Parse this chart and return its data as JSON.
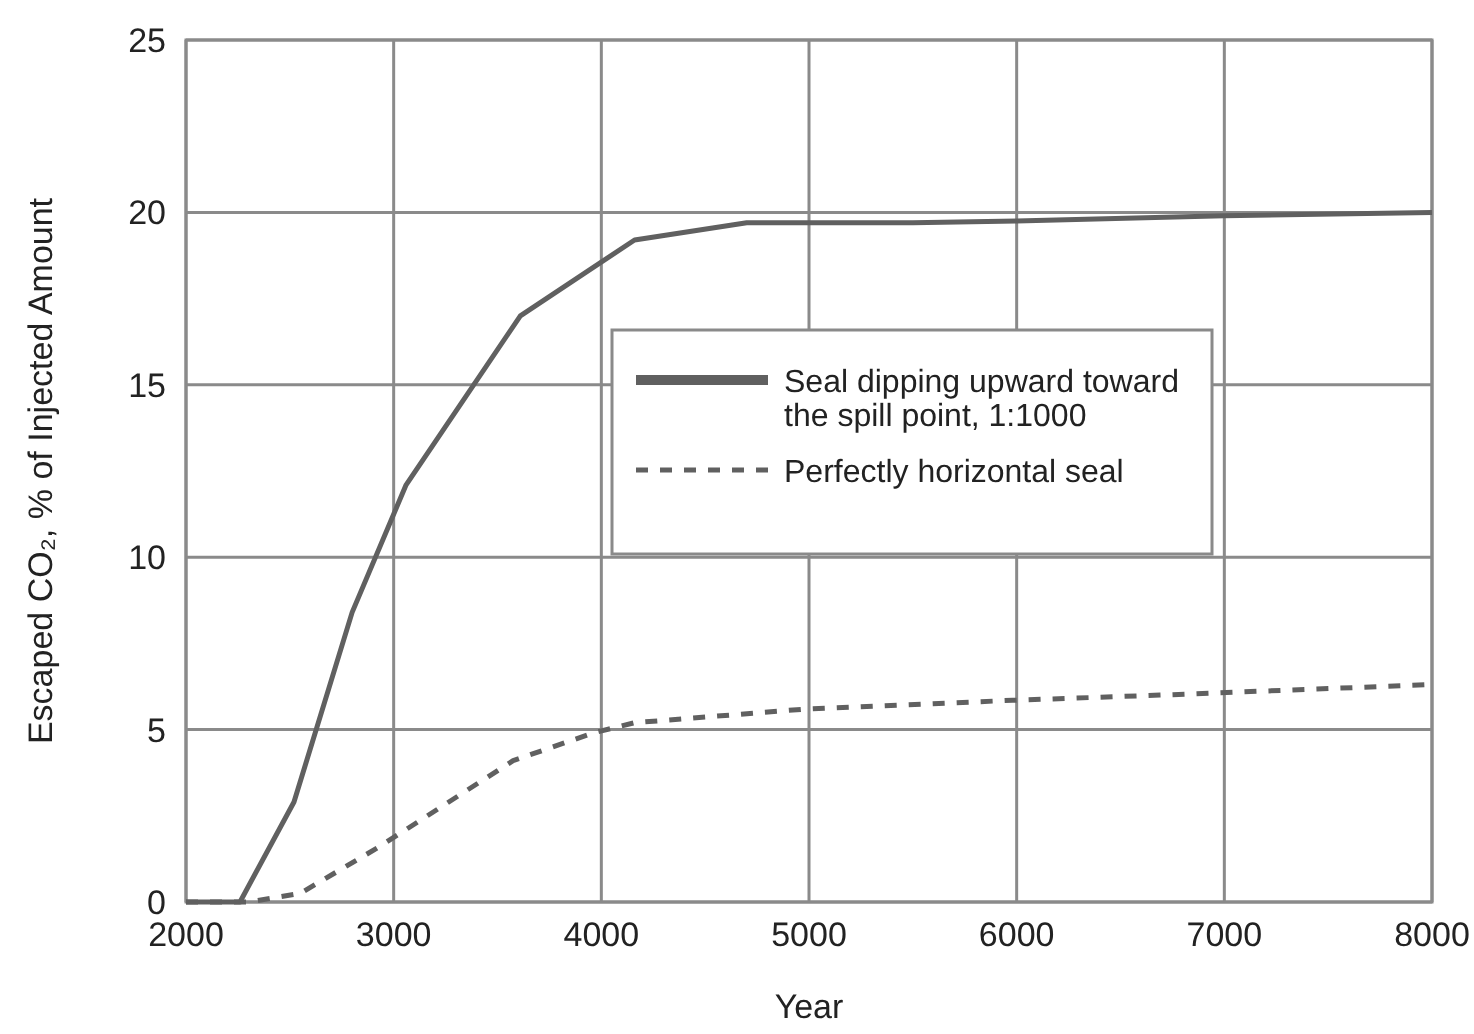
{
  "chart_data": {
    "type": "line",
    "xlabel": "Year",
    "ylabel": "Escaped CO₂, % of Injected Amount",
    "xlim": [
      2000,
      8000
    ],
    "xticks": [
      2000,
      3000,
      4000,
      5000,
      6000,
      7000,
      8000
    ],
    "ylim": [
      0,
      25
    ],
    "yticks": [
      0,
      5,
      10,
      15,
      20,
      25
    ],
    "grid": true,
    "legend": "right",
    "series": [
      {
        "name": "Seal dipping upward toward the spill point, 1:1000",
        "color": "#606060",
        "line_style": "solid",
        "x": [
          2000,
          2260,
          2520,
          2800,
          3060,
          3610,
          4160,
          4700,
          5500,
          6000,
          7000,
          8000
        ],
        "values": [
          0,
          0,
          2.9,
          8.4,
          12.1,
          17,
          19.2,
          19.7,
          19.7,
          19.75,
          19.9,
          20
        ]
      },
      {
        "name": "Perfectly horizontal seal",
        "color": "#606060",
        "line_style": "dashed",
        "x": [
          2000,
          2300,
          2550,
          2930,
          3575,
          3960,
          4160,
          4990,
          5980,
          6690,
          7970
        ],
        "values": [
          0,
          0,
          0.25,
          1.6,
          4.1,
          4.9,
          5.2,
          5.6,
          5.85,
          6,
          6.3
        ]
      }
    ]
  }
}
